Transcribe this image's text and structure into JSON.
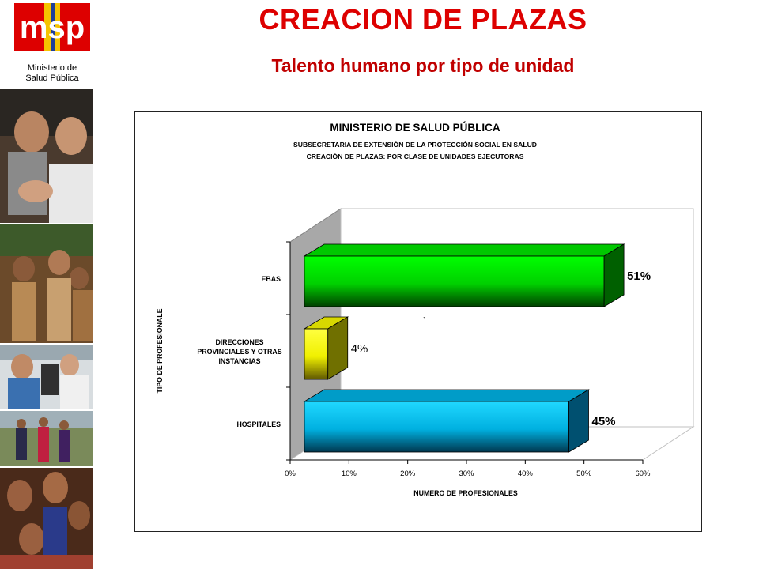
{
  "header": {
    "title": "CREACION DE PLAZAS",
    "subtitle": "Talento humano por tipo de unidad",
    "logo_text": "msp",
    "logo_caption_line1": "Ministerio de",
    "logo_caption_line2": "Salud Pública"
  },
  "colors": {
    "brand_red": "#dd0000",
    "logo_yellow": "#f5c400",
    "logo_blue": "#1f3f9a",
    "bar_green": "#00e000",
    "bar_yellow": "#ffff00",
    "bar_cyan": "#00c0f0"
  },
  "chart_data": {
    "type": "bar",
    "orientation": "horizontal",
    "three_d": true,
    "title": "MINISTERIO DE SALUD PÚBLICA",
    "subtitle_lines": [
      "SUBSECRETARIA DE EXTENSIÓN DE LA PROTECCIÓN SOCIAL EN SALUD",
      "CREACIÓN DE PLAZAS: POR CLASE DE UNIDADES EJECUTORAS"
    ],
    "categories": [
      [
        "EBAS"
      ],
      [
        "DIRECCIONES",
        "PROVINCIALES Y OTRAS",
        "INSTANCIAS"
      ],
      [
        "HOSPITALES"
      ]
    ],
    "values": [
      51,
      4,
      45
    ],
    "data_labels": [
      "51%",
      "4%",
      "45%"
    ],
    "bar_colors": [
      "#00e000",
      "#ffff00",
      "#00c0f0"
    ],
    "xlabel": "NUMERO DE PROFESIONALES",
    "ylabel": "TIPO DE PROFESIONALE",
    "xlim": [
      0,
      60
    ],
    "xticks": [
      "0%",
      "10%",
      "20%",
      "30%",
      "40%",
      "50%",
      "60%"
    ],
    "grid": false
  }
}
